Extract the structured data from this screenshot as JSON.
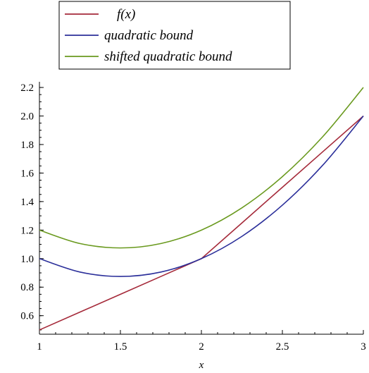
{
  "chart_data": {
    "type": "line",
    "title": "",
    "xlabel": "x",
    "ylabel": "",
    "xlim": [
      1,
      3
    ],
    "ylim": [
      0.47,
      2.22
    ],
    "xticks": [
      "1",
      "1.5",
      "2",
      "2.5",
      "3"
    ],
    "yticks": [
      "0.6",
      "0.8",
      "1.0",
      "1.2",
      "1.4",
      "1.6",
      "1.8",
      "2.0",
      "2.2"
    ],
    "grid": false,
    "legend_position": "top",
    "series": [
      {
        "name": "f(x)",
        "color": "#a52a3a",
        "x": [
          1,
          1.25,
          1.5,
          1.75,
          2,
          2.25,
          2.5,
          2.75,
          3
        ],
        "y": [
          0.5,
          0.625,
          0.75,
          0.875,
          1.0,
          1.25,
          1.5,
          1.75,
          2.0
        ]
      },
      {
        "name": "quadratic bound",
        "color": "#2b2f9a",
        "x": [
          1,
          1.25,
          1.5,
          1.75,
          2,
          2.25,
          2.5,
          2.75,
          3
        ],
        "y": [
          1.0,
          0.906,
          0.875,
          0.906,
          1.0,
          1.156,
          1.375,
          1.656,
          2.0
        ]
      },
      {
        "name": "shifted quadratic bound",
        "color": "#6a9a1f",
        "x": [
          1,
          1.25,
          1.5,
          1.75,
          2,
          2.25,
          2.5,
          2.75,
          3
        ],
        "y": [
          1.2,
          1.106,
          1.075,
          1.106,
          1.2,
          1.356,
          1.575,
          1.856,
          2.2
        ]
      }
    ]
  }
}
